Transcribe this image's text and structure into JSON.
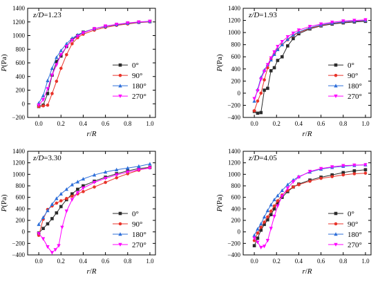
{
  "figure": {
    "panel_count": 4
  },
  "chart_data": [
    {
      "type": "line",
      "annotation": {
        "var": "z/D",
        "value": "=1.23"
      },
      "xlabel": {
        "a": "r",
        "slash": "/",
        "b": "R"
      },
      "ylabel": {
        "p": "P",
        "unit": "(Pa)"
      },
      "xlim": [
        -0.1,
        1.05
      ],
      "ylim": [
        -200,
        1400
      ],
      "xticks": [
        0.0,
        0.2,
        0.4,
        0.6,
        0.8,
        1.0
      ],
      "xtick_labels": [
        "0.0",
        "0.2",
        "0.4",
        "0.6",
        "0.8",
        "1.0"
      ],
      "yticks": [
        -200,
        0,
        200,
        400,
        600,
        800,
        1000,
        1200,
        1400
      ],
      "ytick_labels": [
        "−200",
        "0",
        "200",
        "400",
        "600",
        "800",
        "1000",
        "1200",
        "1400"
      ],
      "legend_position": "center-right",
      "series": [
        {
          "name": "0°",
          "color": "#2b2b2b",
          "marker": "square",
          "x": [
            0.0,
            0.04,
            0.08,
            0.12,
            0.16,
            0.2,
            0.25,
            0.3,
            0.35,
            0.4,
            0.5,
            0.6,
            0.7,
            0.8,
            0.9,
            1.0
          ],
          "y": [
            -40,
            -20,
            150,
            420,
            620,
            700,
            840,
            940,
            1000,
            1050,
            1100,
            1135,
            1160,
            1180,
            1195,
            1205
          ]
        },
        {
          "name": "90°",
          "color": "#e8332a",
          "marker": "circle",
          "x": [
            0.0,
            0.04,
            0.08,
            0.12,
            0.16,
            0.2,
            0.25,
            0.3,
            0.35,
            0.4,
            0.5,
            0.6,
            0.7,
            0.8,
            0.9,
            1.0
          ],
          "y": [
            -40,
            -30,
            -20,
            150,
            330,
            520,
            720,
            880,
            970,
            1020,
            1080,
            1120,
            1150,
            1170,
            1190,
            1200
          ]
        },
        {
          "name": "180°",
          "color": "#2e6fd9",
          "marker": "triangle-up",
          "x": [
            0.0,
            0.04,
            0.08,
            0.12,
            0.16,
            0.2,
            0.25,
            0.3,
            0.35,
            0.4,
            0.5,
            0.6,
            0.7,
            0.8,
            0.9,
            1.0
          ],
          "y": [
            10,
            120,
            340,
            520,
            680,
            780,
            880,
            960,
            1010,
            1050,
            1100,
            1135,
            1160,
            1180,
            1195,
            1205
          ]
        },
        {
          "name": "270°",
          "color": "#ff00ff",
          "marker": "triangle-down",
          "x": [
            0.0,
            0.04,
            0.08,
            0.12,
            0.16,
            0.2,
            0.25,
            0.3,
            0.35,
            0.4,
            0.5,
            0.6,
            0.7,
            0.8,
            0.9,
            1.0
          ],
          "y": [
            -20,
            60,
            220,
            420,
            570,
            720,
            840,
            930,
            990,
            1040,
            1100,
            1140,
            1165,
            1185,
            1200,
            1210
          ]
        }
      ]
    },
    {
      "type": "line",
      "annotation": {
        "var": "z/D",
        "value": "=1.93"
      },
      "xlabel": {
        "a": "r",
        "slash": "/",
        "b": "R"
      },
      "ylabel": {
        "p": "P",
        "unit": "(Pa)"
      },
      "xlim": [
        -0.1,
        1.05
      ],
      "ylim": [
        -400,
        1400
      ],
      "xticks": [
        0.0,
        0.2,
        0.4,
        0.6,
        0.8,
        1.0
      ],
      "xtick_labels": [
        "0.0",
        "0.2",
        "0.4",
        "0.6",
        "0.8",
        "1.0"
      ],
      "yticks": [
        -400,
        -200,
        0,
        200,
        400,
        600,
        800,
        1000,
        1200,
        1400
      ],
      "ytick_labels": [
        "−400",
        "−200",
        "0",
        "200",
        "400",
        "600",
        "800",
        "1000",
        "1200",
        "1400"
      ],
      "legend_position": "center-right",
      "series": [
        {
          "name": "0°",
          "color": "#2b2b2b",
          "marker": "square",
          "x": [
            0.0,
            0.03,
            0.06,
            0.09,
            0.12,
            0.15,
            0.18,
            0.21,
            0.25,
            0.3,
            0.35,
            0.4,
            0.5,
            0.6,
            0.7,
            0.8,
            0.9,
            1.0
          ],
          "y": [
            -300,
            -330,
            -320,
            50,
            80,
            370,
            420,
            540,
            600,
            780,
            900,
            980,
            1060,
            1110,
            1140,
            1160,
            1175,
            1185
          ]
        },
        {
          "name": "90°",
          "color": "#e8332a",
          "marker": "circle",
          "x": [
            0.0,
            0.03,
            0.06,
            0.09,
            0.12,
            0.15,
            0.18,
            0.21,
            0.25,
            0.3,
            0.35,
            0.4,
            0.5,
            0.6,
            0.7,
            0.8,
            0.9,
            1.0
          ],
          "y": [
            -290,
            -130,
            0,
            220,
            420,
            560,
            650,
            720,
            800,
            880,
            950,
            1000,
            1070,
            1115,
            1150,
            1170,
            1185,
            1195
          ]
        },
        {
          "name": "180°",
          "color": "#2e6fd9",
          "marker": "triangle-up",
          "x": [
            0.0,
            0.03,
            0.06,
            0.09,
            0.12,
            0.15,
            0.18,
            0.21,
            0.25,
            0.3,
            0.35,
            0.4,
            0.5,
            0.6,
            0.7,
            0.8,
            0.9,
            1.0
          ],
          "y": [
            -130,
            60,
            260,
            380,
            470,
            550,
            640,
            720,
            800,
            890,
            960,
            1010,
            1080,
            1125,
            1155,
            1175,
            1190,
            1200
          ]
        },
        {
          "name": "270°",
          "color": "#ff00ff",
          "marker": "triangle-down",
          "x": [
            0.0,
            0.03,
            0.06,
            0.09,
            0.12,
            0.15,
            0.18,
            0.21,
            0.25,
            0.3,
            0.35,
            0.4,
            0.5,
            0.6,
            0.7,
            0.8,
            0.9,
            1.0
          ],
          "y": [
            -90,
            40,
            230,
            360,
            470,
            580,
            680,
            770,
            850,
            930,
            990,
            1040,
            1100,
            1140,
            1170,
            1190,
            1200,
            1210
          ]
        }
      ]
    },
    {
      "type": "line",
      "annotation": {
        "var": "z/D",
        "value": "=3.30"
      },
      "xlabel": {
        "a": "r",
        "slash": "/",
        "b": "R"
      },
      "ylabel": {
        "p": "P",
        "unit": "(Pa)"
      },
      "xlim": [
        -0.1,
        1.05
      ],
      "ylim": [
        -400,
        1400
      ],
      "xticks": [
        0.0,
        0.2,
        0.4,
        0.6,
        0.8,
        1.0
      ],
      "xtick_labels": [
        "0.0",
        "0.2",
        "0.4",
        "0.6",
        "0.8",
        "1.0"
      ],
      "yticks": [
        -400,
        -200,
        0,
        200,
        400,
        600,
        800,
        1000,
        1200,
        1400
      ],
      "ytick_labels": [
        "−400",
        "−200",
        "0",
        "200",
        "400",
        "600",
        "800",
        "1000",
        "1200",
        "1400"
      ],
      "legend_position": "bottom-right",
      "series": [
        {
          "name": "0°",
          "color": "#2b2b2b",
          "marker": "square",
          "x": [
            0.0,
            0.04,
            0.08,
            0.12,
            0.16,
            0.2,
            0.25,
            0.3,
            0.35,
            0.4,
            0.5,
            0.6,
            0.7,
            0.8,
            0.9,
            1.0
          ],
          "y": [
            -20,
            60,
            140,
            230,
            330,
            440,
            560,
            660,
            740,
            800,
            880,
            950,
            1010,
            1060,
            1100,
            1120
          ]
        },
        {
          "name": "90°",
          "color": "#e8332a",
          "marker": "circle",
          "x": [
            0.0,
            0.04,
            0.08,
            0.12,
            0.16,
            0.2,
            0.25,
            0.3,
            0.35,
            0.4,
            0.5,
            0.6,
            0.7,
            0.8,
            0.9,
            1.0
          ],
          "y": [
            -60,
            220,
            390,
            450,
            500,
            540,
            580,
            620,
            660,
            700,
            780,
            860,
            940,
            1010,
            1070,
            1120
          ]
        },
        {
          "name": "180°",
          "color": "#2e6fd9",
          "marker": "triangle-up",
          "x": [
            0.0,
            0.04,
            0.08,
            0.12,
            0.16,
            0.2,
            0.25,
            0.3,
            0.35,
            0.4,
            0.5,
            0.6,
            0.7,
            0.8,
            0.9,
            1.0
          ],
          "y": [
            130,
            250,
            370,
            480,
            580,
            660,
            740,
            820,
            870,
            920,
            990,
            1040,
            1080,
            1110,
            1140,
            1180
          ]
        },
        {
          "name": "270°",
          "color": "#ff00ff",
          "marker": "triangle-down",
          "x": [
            0.0,
            0.04,
            0.08,
            0.12,
            0.15,
            0.18,
            0.21,
            0.25,
            0.3,
            0.35,
            0.4,
            0.5,
            0.6,
            0.7,
            0.8,
            0.9,
            1.0
          ],
          "y": [
            -30,
            -120,
            -260,
            -360,
            -310,
            -240,
            80,
            360,
            560,
            680,
            760,
            860,
            930,
            990,
            1040,
            1080,
            1110
          ]
        }
      ]
    },
    {
      "type": "line",
      "annotation": {
        "var": "z/D",
        "value": "=4.05"
      },
      "xlabel": {
        "a": "r",
        "slash": "/",
        "b": "R"
      },
      "ylabel": {
        "p": "P",
        "unit": "(Pa)"
      },
      "xlim": [
        -0.1,
        1.05
      ],
      "ylim": [
        -400,
        1400
      ],
      "xticks": [
        0.0,
        0.2,
        0.4,
        0.6,
        0.8,
        1.0
      ],
      "xtick_labels": [
        "0.0",
        "0.2",
        "0.4",
        "0.6",
        "0.8",
        "1.0"
      ],
      "yticks": [
        -400,
        -200,
        0,
        200,
        400,
        600,
        800,
        1000,
        1200,
        1400
      ],
      "ytick_labels": [
        "−400",
        "−200",
        "0",
        "200",
        "400",
        "600",
        "800",
        "1000",
        "1200",
        "1400"
      ],
      "legend_position": "bottom-right",
      "series": [
        {
          "name": "0°",
          "color": "#2b2b2b",
          "marker": "square",
          "x": [
            0.0,
            0.03,
            0.06,
            0.09,
            0.12,
            0.15,
            0.18,
            0.21,
            0.25,
            0.3,
            0.35,
            0.4,
            0.5,
            0.6,
            0.7,
            0.8,
            0.9,
            1.0
          ],
          "y": [
            -240,
            -110,
            30,
            130,
            210,
            300,
            400,
            500,
            600,
            700,
            780,
            830,
            900,
            950,
            990,
            1030,
            1060,
            1080
          ]
        },
        {
          "name": "90°",
          "color": "#e8332a",
          "marker": "circle",
          "x": [
            0.0,
            0.03,
            0.06,
            0.09,
            0.12,
            0.15,
            0.18,
            0.21,
            0.25,
            0.3,
            0.35,
            0.4,
            0.5,
            0.6,
            0.7,
            0.8,
            0.9,
            1.0
          ],
          "y": [
            -150,
            -20,
            80,
            170,
            260,
            360,
            450,
            540,
            640,
            720,
            780,
            820,
            880,
            930,
            960,
            990,
            1010,
            1020
          ]
        },
        {
          "name": "180°",
          "color": "#2e6fd9",
          "marker": "triangle-up",
          "x": [
            0.0,
            0.03,
            0.06,
            0.09,
            0.12,
            0.15,
            0.18,
            0.21,
            0.25,
            0.3,
            0.35,
            0.4,
            0.5,
            0.6,
            0.7,
            0.8,
            0.9,
            1.0
          ],
          "y": [
            -60,
            50,
            140,
            260,
            370,
            470,
            560,
            630,
            720,
            820,
            900,
            960,
            1040,
            1090,
            1120,
            1140,
            1155,
            1165
          ]
        },
        {
          "name": "270°",
          "color": "#ff00ff",
          "marker": "triangle-down",
          "x": [
            0.0,
            0.03,
            0.06,
            0.09,
            0.12,
            0.15,
            0.18,
            0.21,
            0.25,
            0.3,
            0.35,
            0.4,
            0.5,
            0.6,
            0.7,
            0.8,
            0.9,
            1.0
          ],
          "y": [
            -110,
            -180,
            -270,
            -250,
            -150,
            60,
            270,
            450,
            620,
            760,
            870,
            950,
            1050,
            1100,
            1130,
            1150,
            1160,
            1165
          ]
        }
      ]
    }
  ]
}
